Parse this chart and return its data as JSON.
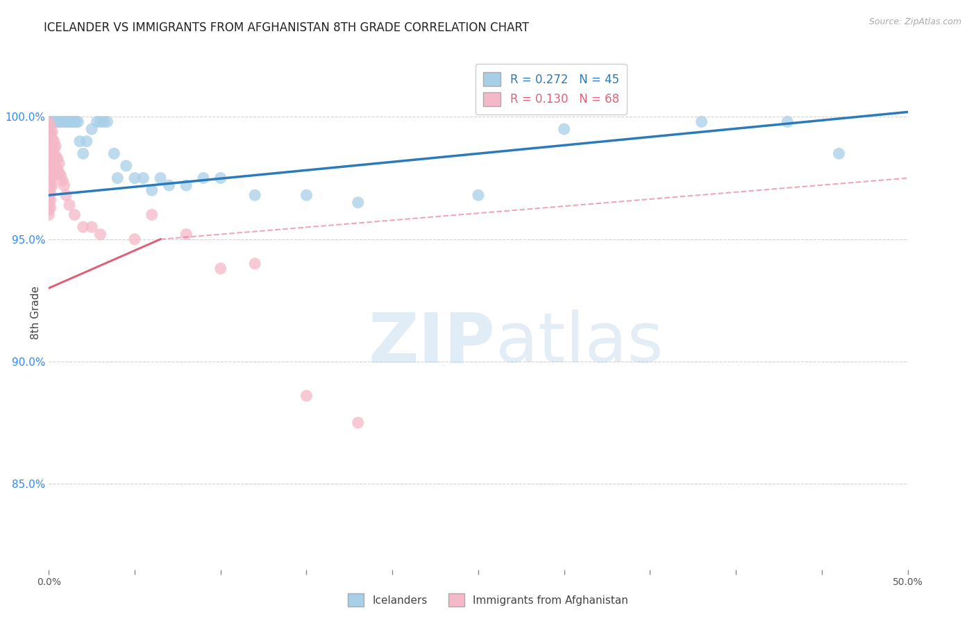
{
  "title": "ICELANDER VS IMMIGRANTS FROM AFGHANISTAN 8TH GRADE CORRELATION CHART",
  "source": "Source: ZipAtlas.com",
  "ylabel": "8th Grade",
  "yaxis_labels": [
    "100.0%",
    "95.0%",
    "90.0%",
    "85.0%"
  ],
  "yaxis_values": [
    1.0,
    0.95,
    0.9,
    0.85
  ],
  "xlim": [
    0.0,
    0.5
  ],
  "ylim": [
    0.815,
    1.025
  ],
  "legend_blue_r": "R = 0.272",
  "legend_blue_n": "N = 45",
  "legend_pink_r": "R = 0.130",
  "legend_pink_n": "N = 68",
  "blue_color": "#a8cfe8",
  "pink_color": "#f4b8c8",
  "blue_line_color": "#2b7bba",
  "pink_line_color": "#e0607a",
  "blue_scatter": [
    [
      0.001,
      0.998
    ],
    [
      0.002,
      0.998
    ],
    [
      0.003,
      0.998
    ],
    [
      0.004,
      0.998
    ],
    [
      0.005,
      0.998
    ],
    [
      0.006,
      0.998
    ],
    [
      0.007,
      0.998
    ],
    [
      0.008,
      0.998
    ],
    [
      0.009,
      0.998
    ],
    [
      0.01,
      0.998
    ],
    [
      0.011,
      0.998
    ],
    [
      0.012,
      0.998
    ],
    [
      0.013,
      0.998
    ],
    [
      0.014,
      0.998
    ],
    [
      0.015,
      0.998
    ],
    [
      0.016,
      0.998
    ],
    [
      0.017,
      0.998
    ],
    [
      0.018,
      0.99
    ],
    [
      0.02,
      0.985
    ],
    [
      0.022,
      0.99
    ],
    [
      0.025,
      0.995
    ],
    [
      0.028,
      0.998
    ],
    [
      0.03,
      0.998
    ],
    [
      0.032,
      0.998
    ],
    [
      0.034,
      0.998
    ],
    [
      0.038,
      0.985
    ],
    [
      0.04,
      0.975
    ],
    [
      0.045,
      0.98
    ],
    [
      0.05,
      0.975
    ],
    [
      0.055,
      0.975
    ],
    [
      0.06,
      0.97
    ],
    [
      0.065,
      0.975
    ],
    [
      0.07,
      0.972
    ],
    [
      0.08,
      0.972
    ],
    [
      0.09,
      0.975
    ],
    [
      0.1,
      0.975
    ],
    [
      0.12,
      0.968
    ],
    [
      0.15,
      0.968
    ],
    [
      0.18,
      0.965
    ],
    [
      0.25,
      0.968
    ],
    [
      0.3,
      0.995
    ],
    [
      0.38,
      0.998
    ],
    [
      0.43,
      0.998
    ],
    [
      0.46,
      0.985
    ],
    [
      0.001,
      0.993
    ]
  ],
  "pink_scatter": [
    [
      0.0,
      0.998
    ],
    [
      0.0,
      0.996
    ],
    [
      0.0,
      0.994
    ],
    [
      0.0,
      0.992
    ],
    [
      0.0,
      0.99
    ],
    [
      0.0,
      0.988
    ],
    [
      0.0,
      0.986
    ],
    [
      0.0,
      0.984
    ],
    [
      0.0,
      0.982
    ],
    [
      0.0,
      0.98
    ],
    [
      0.0,
      0.978
    ],
    [
      0.0,
      0.976
    ],
    [
      0.0,
      0.974
    ],
    [
      0.0,
      0.972
    ],
    [
      0.0,
      0.97
    ],
    [
      0.0,
      0.968
    ],
    [
      0.0,
      0.966
    ],
    [
      0.0,
      0.964
    ],
    [
      0.0,
      0.962
    ],
    [
      0.0,
      0.96
    ],
    [
      0.001,
      0.996
    ],
    [
      0.001,
      0.993
    ],
    [
      0.001,
      0.99
    ],
    [
      0.001,
      0.987
    ],
    [
      0.001,
      0.984
    ],
    [
      0.001,
      0.981
    ],
    [
      0.001,
      0.978
    ],
    [
      0.001,
      0.975
    ],
    [
      0.001,
      0.972
    ],
    [
      0.001,
      0.969
    ],
    [
      0.001,
      0.966
    ],
    [
      0.001,
      0.963
    ],
    [
      0.002,
      0.994
    ],
    [
      0.002,
      0.991
    ],
    [
      0.002,
      0.988
    ],
    [
      0.002,
      0.985
    ],
    [
      0.002,
      0.982
    ],
    [
      0.002,
      0.979
    ],
    [
      0.002,
      0.976
    ],
    [
      0.002,
      0.972
    ],
    [
      0.003,
      0.99
    ],
    [
      0.003,
      0.987
    ],
    [
      0.003,
      0.984
    ],
    [
      0.003,
      0.98
    ],
    [
      0.003,
      0.976
    ],
    [
      0.004,
      0.988
    ],
    [
      0.004,
      0.984
    ],
    [
      0.004,
      0.978
    ],
    [
      0.005,
      0.983
    ],
    [
      0.005,
      0.979
    ],
    [
      0.006,
      0.981
    ],
    [
      0.006,
      0.977
    ],
    [
      0.007,
      0.976
    ],
    [
      0.008,
      0.974
    ],
    [
      0.009,
      0.972
    ],
    [
      0.01,
      0.968
    ],
    [
      0.012,
      0.964
    ],
    [
      0.015,
      0.96
    ],
    [
      0.02,
      0.955
    ],
    [
      0.025,
      0.955
    ],
    [
      0.03,
      0.952
    ],
    [
      0.05,
      0.95
    ],
    [
      0.06,
      0.96
    ],
    [
      0.08,
      0.952
    ],
    [
      0.1,
      0.938
    ],
    [
      0.12,
      0.94
    ],
    [
      0.15,
      0.886
    ],
    [
      0.18,
      0.875
    ]
  ],
  "blue_trendline": [
    [
      0.0,
      0.968
    ],
    [
      0.5,
      1.002
    ]
  ],
  "pink_trendline_solid": [
    [
      0.0,
      0.93
    ],
    [
      0.065,
      0.95
    ]
  ],
  "pink_trendline_dashed": [
    [
      0.065,
      0.95
    ],
    [
      0.5,
      0.975
    ]
  ],
  "watermark_zip": "ZIP",
  "watermark_atlas": "atlas",
  "background_color": "#ffffff",
  "grid_color": "#cccccc"
}
